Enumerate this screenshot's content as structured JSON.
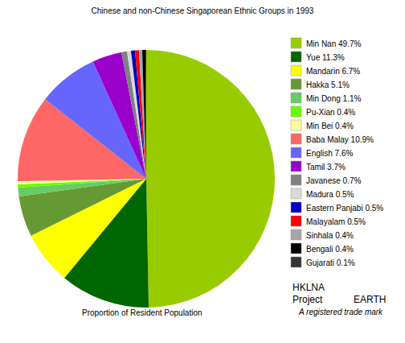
{
  "chart_data": {
    "type": "pie",
    "title": "Chinese and non-Chinese Singaporean Ethnic Groups in 1993",
    "categories": [
      "Min Nan 49.7%",
      "Yue 11.3%",
      "Mandarin 6.7%",
      "Hakka 5.1%",
      "Min Dong 1.1%",
      "Pu-Xian 0.4%",
      "Min Bei 0.4%",
      "Baba Malay 10.9%",
      "English 7.6%",
      "Tamil 3.7%",
      "Javanese 0.7%",
      "Madura 0.5%",
      "Eastern Panjabi 0.5%",
      "Malayalam 0.5%",
      "Sinhala 0.4%",
      "Bengali 0.4%",
      "Gujarati 0.1%"
    ],
    "values": [
      49.7,
      11.3,
      6.7,
      5.1,
      1.1,
      0.4,
      0.4,
      10.9,
      7.6,
      3.7,
      0.7,
      0.5,
      0.5,
      0.5,
      0.4,
      0.4,
      0.1
    ],
    "colors": [
      "#99cc00",
      "#006600",
      "#ffff00",
      "#669933",
      "#66cc66",
      "#66ff00",
      "#ffff99",
      "#ff6666",
      "#6666ff",
      "#9900cc",
      "#808080",
      "#d9d9d9",
      "#0000cc",
      "#ff0000",
      "#a6a6a6",
      "#000000",
      "#333333"
    ],
    "legend": "right",
    "annotations": [
      "Proportion of Resident Population",
      "HKLNA",
      "Project",
      "EARTH",
      "A registered trade mark"
    ]
  }
}
